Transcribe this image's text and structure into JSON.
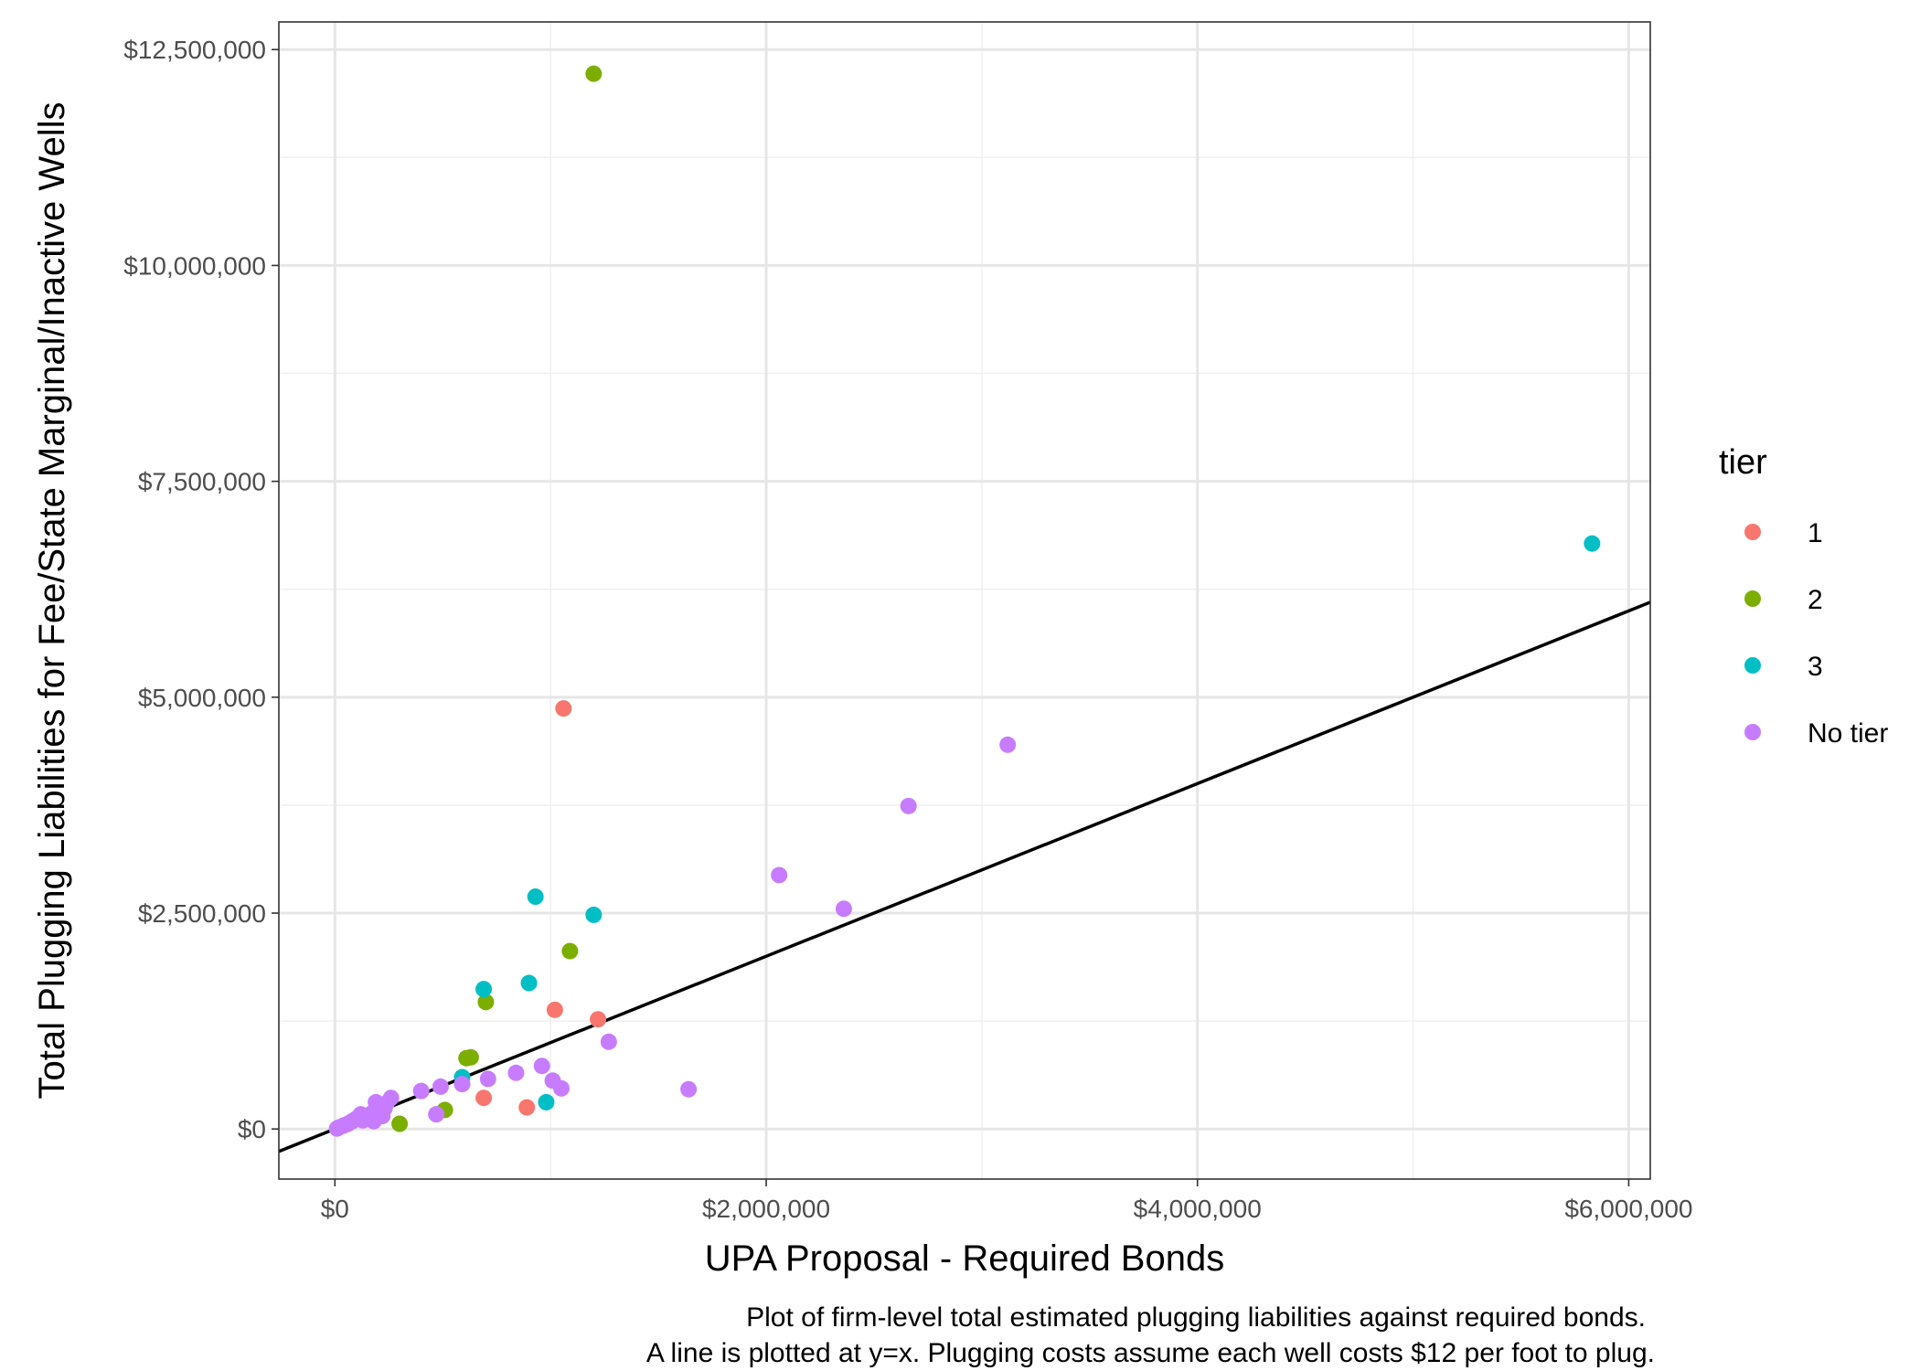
{
  "chart_data": {
    "type": "scatter",
    "title": "",
    "xlabel": "UPA Proposal - Required Bonds",
    "ylabel": "Total Plugging Liabilities for Fee/State Marginal/Inactive Wells",
    "caption_lines": [
      "Plot of firm-level total estimated plugging liabilities against required bonds.",
      "A line is plotted at y=x. Plugging costs assume each well costs $12 per foot to plug."
    ],
    "xlim": [
      -260000,
      6100000
    ],
    "ylim": [
      -580000,
      12820000
    ],
    "x_ticks": [
      0,
      2000000,
      4000000,
      6000000
    ],
    "x_tick_labels": [
      "$0",
      "$2,000,000",
      "$4,000,000",
      "$6,000,000"
    ],
    "y_ticks": [
      0,
      2500000,
      5000000,
      7500000,
      10000000,
      12500000
    ],
    "y_tick_labels": [
      "$0",
      "$2,500,000",
      "$5,000,000",
      "$7,500,000",
      "$10,000,000",
      "$12,500,000"
    ],
    "grid": true,
    "legend": {
      "title": "tier",
      "position": "right",
      "entries": [
        {
          "label": "1",
          "color": "#F8766D"
        },
        {
          "label": "2",
          "color": "#7CAE00"
        },
        {
          "label": "3",
          "color": "#00BFC4"
        },
        {
          "label": "No tier",
          "color": "#C77CFF"
        }
      ]
    },
    "reference_line": {
      "slope": 1,
      "intercept": 0
    },
    "series": [
      {
        "name": "1",
        "color": "#F8766D",
        "points": [
          [
            1060000,
            4870000
          ],
          [
            1020000,
            1380000
          ],
          [
            1220000,
            1270000
          ],
          [
            690000,
            360000
          ],
          [
            890000,
            250000
          ]
        ]
      },
      {
        "name": "2",
        "color": "#7CAE00",
        "points": [
          [
            1200000,
            12220000
          ],
          [
            1090000,
            2060000
          ],
          [
            700000,
            1470000
          ],
          [
            630000,
            830000
          ],
          [
            610000,
            820000
          ],
          [
            510000,
            220000
          ],
          [
            300000,
            60000
          ]
        ]
      },
      {
        "name": "3",
        "color": "#00BFC4",
        "points": [
          [
            5830000,
            6780000
          ],
          [
            930000,
            2690000
          ],
          [
            1200000,
            2480000
          ],
          [
            900000,
            1690000
          ],
          [
            690000,
            1620000
          ],
          [
            590000,
            600000
          ],
          [
            980000,
            310000
          ]
        ]
      },
      {
        "name": "No tier",
        "color": "#C77CFF",
        "points": [
          [
            3120000,
            4450000
          ],
          [
            2660000,
            3740000
          ],
          [
            2060000,
            2940000
          ],
          [
            2360000,
            2550000
          ],
          [
            1270000,
            1010000
          ],
          [
            960000,
            730000
          ],
          [
            840000,
            650000
          ],
          [
            1010000,
            560000
          ],
          [
            710000,
            580000
          ],
          [
            1050000,
            470000
          ],
          [
            1640000,
            460000
          ],
          [
            590000,
            520000
          ],
          [
            490000,
            490000
          ],
          [
            400000,
            440000
          ],
          [
            470000,
            170000
          ],
          [
            260000,
            360000
          ],
          [
            240000,
            300000
          ],
          [
            190000,
            310000
          ],
          [
            230000,
            240000
          ],
          [
            200000,
            200000
          ],
          [
            170000,
            180000
          ],
          [
            150000,
            150000
          ],
          [
            120000,
            170000
          ],
          [
            100000,
            120000
          ],
          [
            80000,
            90000
          ],
          [
            60000,
            60000
          ],
          [
            40000,
            40000
          ],
          [
            20000,
            20000
          ],
          [
            10000,
            5000
          ],
          [
            180000,
            90000
          ],
          [
            130000,
            100000
          ],
          [
            220000,
            150000
          ]
        ]
      }
    ]
  }
}
